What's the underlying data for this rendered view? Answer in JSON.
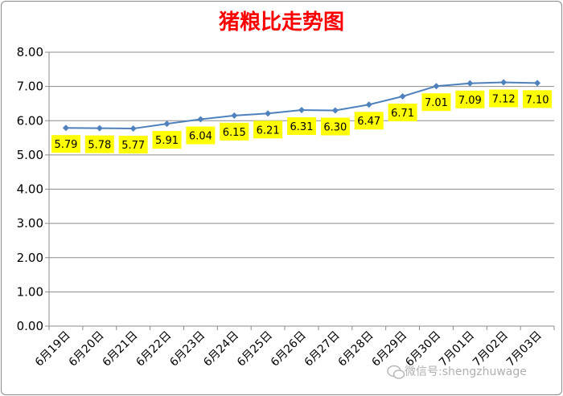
{
  "chart_data": {
    "type": "line",
    "title": "猪粮比走势图",
    "xlabel": "",
    "ylabel": "",
    "categories": [
      "6月19日",
      "6月20日",
      "6月21日",
      "6月22日",
      "6月23日",
      "6月24日",
      "6月25日",
      "6月26日",
      "6月27日",
      "6月28日",
      "6月29日",
      "6月30日",
      "7月01日",
      "7月02日",
      "7月03日"
    ],
    "series": [
      {
        "values": [
          5.79,
          5.78,
          5.77,
          5.91,
          6.04,
          6.15,
          6.21,
          6.31,
          6.3,
          6.47,
          6.71,
          7.01,
          7.09,
          7.12,
          7.1
        ],
        "labels": [
          "5.79",
          "5.78",
          "5.77",
          "5.91",
          "6.04",
          "6.15",
          "6.21",
          "6.31",
          "6.30",
          "6.47",
          "6.71",
          "7.01",
          "7.09",
          "7.12",
          "7.10"
        ],
        "color": "#4f81bd"
      }
    ],
    "ylim": [
      0,
      8
    ],
    "yticks": [
      "0.00",
      "1.00",
      "2.00",
      "3.00",
      "4.00",
      "5.00",
      "6.00",
      "7.00",
      "8.00"
    ],
    "grid": true,
    "legend": "none",
    "data_label_bg": "#ffff00"
  },
  "watermark": "微信号:shengzhuwage"
}
